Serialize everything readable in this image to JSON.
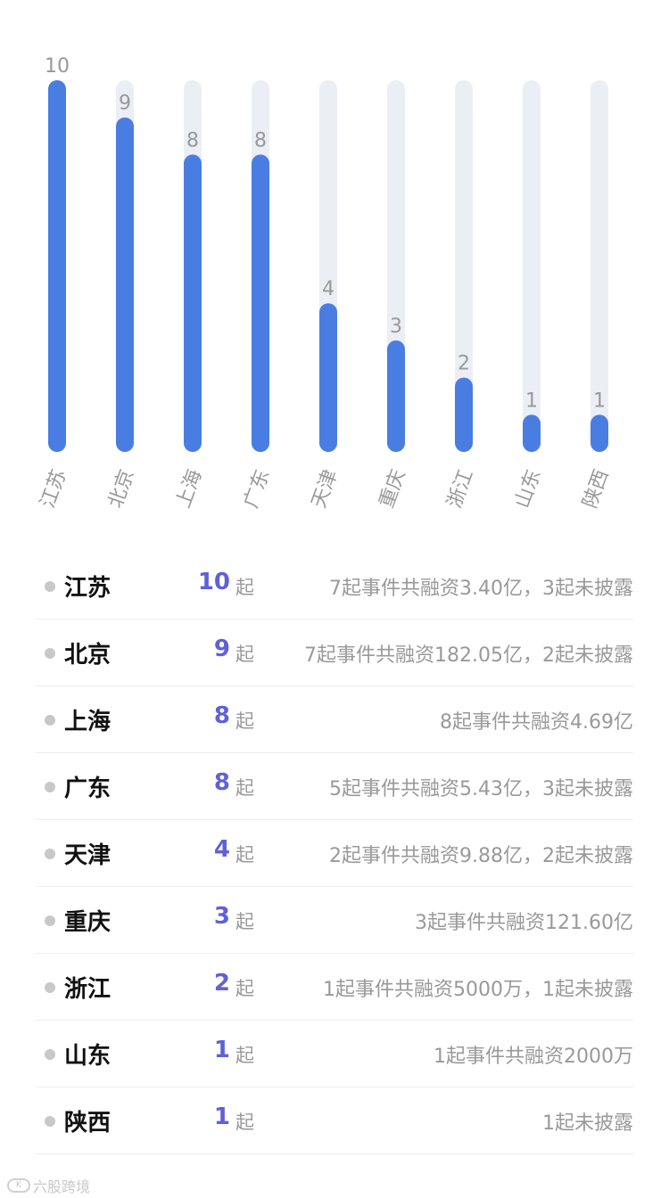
{
  "chart_data": {
    "type": "bar",
    "categories": [
      "江苏",
      "北京",
      "上海",
      "广东",
      "天津",
      "重庆",
      "浙江",
      "山东",
      "陕西"
    ],
    "values": [
      10,
      9,
      8,
      8,
      4,
      3,
      2,
      1,
      1
    ],
    "ylim": [
      0,
      10
    ],
    "grid": false,
    "legend": "none",
    "bar_color": "#4a7de2",
    "track_color": "#eceef5"
  },
  "list": {
    "unit": "起",
    "rows": [
      {
        "name": "江苏",
        "count": "10",
        "desc": "7起事件共融资3.40亿，3起未披露"
      },
      {
        "name": "北京",
        "count": "9",
        "desc": "7起事件共融资182.05亿，2起未披露"
      },
      {
        "name": "上海",
        "count": "8",
        "desc": "8起事件共融资4.69亿"
      },
      {
        "name": "广东",
        "count": "8",
        "desc": "5起事件共融资5.43亿，3起未披露"
      },
      {
        "name": "天津",
        "count": "4",
        "desc": "2起事件共融资9.88亿，2起未披露"
      },
      {
        "name": "重庆",
        "count": "3",
        "desc": "3起事件共融资121.60亿"
      },
      {
        "name": "浙江",
        "count": "2",
        "desc": "1起事件共融资5000万，1起未披露"
      },
      {
        "name": "山东",
        "count": "1",
        "desc": "1起事件共融资2000万"
      },
      {
        "name": "陕西",
        "count": "1",
        "desc": "1起未披露"
      }
    ],
    "count_color": "#6060d8"
  },
  "watermark": {
    "text": "六股跨境"
  }
}
